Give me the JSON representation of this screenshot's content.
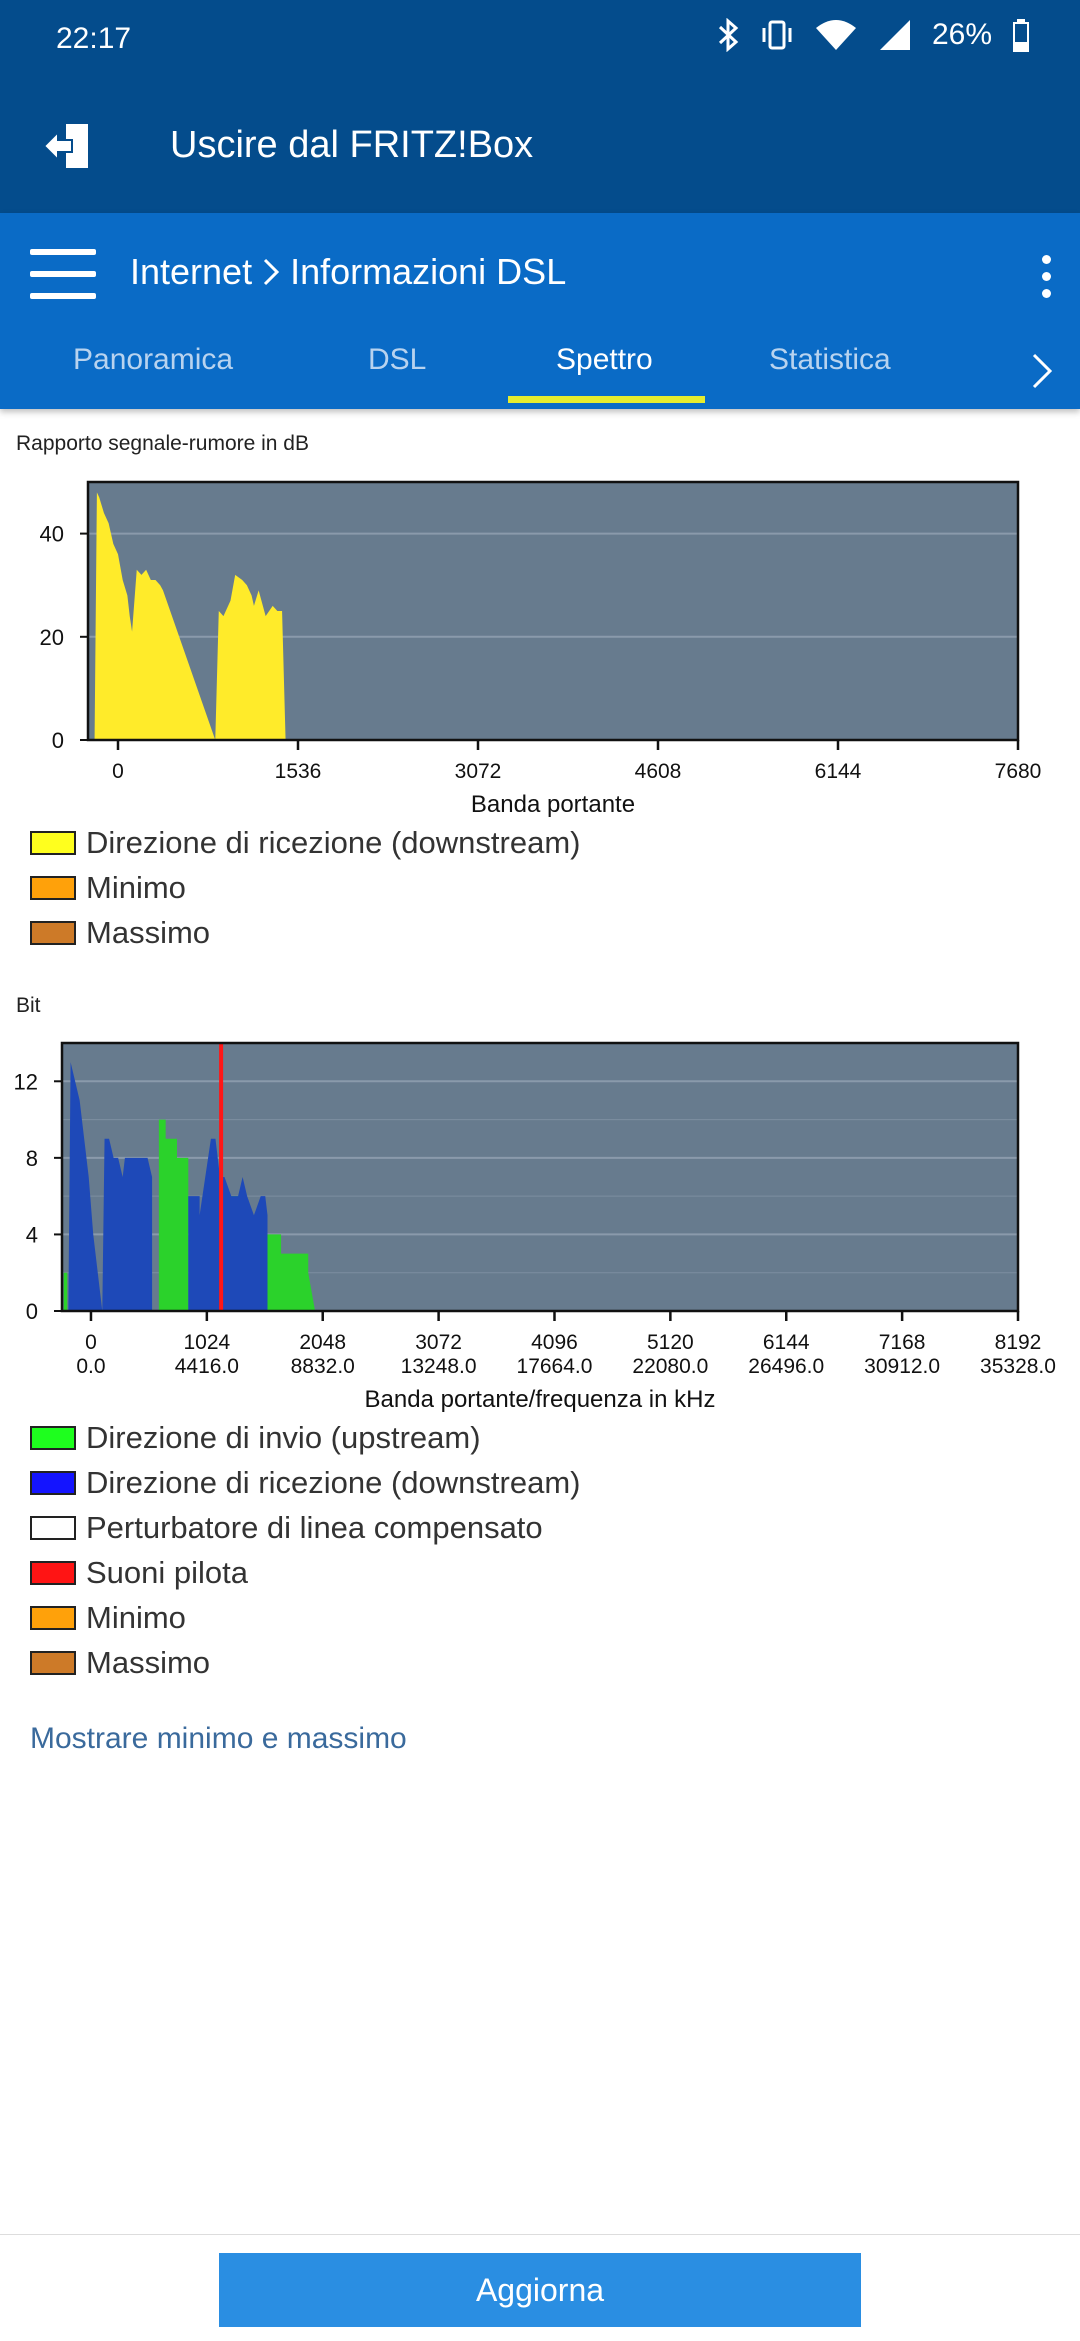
{
  "status": {
    "time": "22:17",
    "battery": "26%"
  },
  "header": {
    "title": "Uscire dal FRITZ!Box"
  },
  "breadcrumb": {
    "part1": "Internet",
    "part2": "Informazioni DSL"
  },
  "tabs": [
    "Panoramica",
    "DSL",
    "Spettro",
    "Statistica"
  ],
  "colors": {
    "statusbar": "#044c8c",
    "nav": "#0a6bc6",
    "indicator": "#e6ec2e",
    "plot_bg": "#677b8e",
    "button": "#2a8ee2"
  },
  "chart_data": [
    {
      "type": "area",
      "title": "Rapporto segnale-rumore in dB",
      "xlabel": "Banda portante",
      "ylabel": "",
      "xlim": [
        -256,
        7680
      ],
      "ylim": [
        0,
        50
      ],
      "xticks": [
        0,
        1536,
        3072,
        4608,
        6144,
        7680
      ],
      "yticks": [
        0,
        20,
        40
      ],
      "grid": true,
      "series": [
        {
          "name": "Direzione di ricezione (downstream)",
          "color": "#ffeb2a",
          "x": [
            -200,
            -180,
            -160,
            -120,
            -80,
            -40,
            0,
            40,
            80,
            100,
            120,
            160,
            200,
            240,
            280,
            320,
            360,
            384,
            830,
            860,
            900,
            960,
            1000,
            1060,
            1100,
            1140,
            1160,
            1200,
            1260,
            1320,
            1360,
            1400,
            1430
          ],
          "y": [
            0,
            48,
            47,
            44,
            42,
            38,
            36,
            31,
            28,
            24,
            21,
            33,
            32,
            33,
            31,
            31,
            30,
            29,
            0,
            25,
            24,
            27,
            32,
            31,
            30,
            28,
            26,
            29,
            24,
            26,
            25,
            25,
            0
          ]
        },
        {
          "name": "Minimo",
          "color": "#ffa10a",
          "x": [],
          "y": []
        },
        {
          "name": "Massimo",
          "color": "#cd7a28",
          "x": [],
          "y": []
        }
      ]
    },
    {
      "type": "area",
      "title": "Bit",
      "xlabel": "Banda portante/frequenza in kHz",
      "ylabel": "",
      "xlim": [
        -256,
        8192
      ],
      "ylim": [
        0,
        14
      ],
      "xticks": [
        0,
        1024,
        2048,
        3072,
        4096,
        5120,
        6144,
        7168,
        8192
      ],
      "xticks_khz": [
        "0.0",
        "4416.0",
        "8832.0",
        "13248.0",
        "17664.0",
        "22080.0",
        "26496.0",
        "30912.0",
        "35328.0"
      ],
      "yticks": [
        0,
        4,
        8,
        12
      ],
      "grid": true,
      "series": [
        {
          "name": "Direzione di invio (upstream)",
          "color": "#2bd22b",
          "segments": [
            {
              "x": [
                -240,
                -240,
                -210,
                -210
              ],
              "y": [
                0,
                2,
                2,
                0
              ]
            },
            {
              "x": [
                600,
                600,
                660,
                660,
                760,
                760,
                860,
                860,
                600
              ],
              "y": [
                0,
                10,
                10,
                9,
                9,
                8,
                8,
                0,
                0
              ]
            },
            {
              "x": [
                1200,
                1200,
                1340,
                1340,
                1500,
                1500,
                1680,
                1680,
                1920,
                1920,
                1980
              ],
              "y": [
                0,
                6,
                6,
                5,
                5,
                4,
                4,
                3,
                3,
                2,
                0
              ]
            }
          ]
        },
        {
          "name": "Direzione di ricezione (downstream)",
          "color": "#1e49b8",
          "segments": [
            {
              "x": [
                -200,
                -180,
                -140,
                -100,
                -60,
                -20,
                20,
                60,
                100,
                120,
                160,
                200,
                240,
                280,
                300,
                340,
                380,
                420,
                460,
                500,
                540,
                540
              ],
              "y": [
                0,
                13,
                12,
                11,
                9,
                7,
                4,
                2,
                0,
                9,
                9,
                8,
                8,
                7,
                8,
                8,
                8,
                8,
                8,
                8,
                7,
                0
              ]
            },
            {
              "x": [
                860,
                860,
                960,
                960,
                1060,
                1100,
                1140,
                1180,
                1240,
                1300,
                1340,
                1380,
                1440,
                1500,
                1540,
                1560,
                1560
              ],
              "y": [
                0,
                6,
                6,
                5,
                9,
                9,
                7,
                7,
                6,
                6,
                7,
                6,
                5,
                6,
                6,
                5,
                0
              ]
            }
          ]
        },
        {
          "name": "Perturbatore di linea compensato",
          "color": "#ffffff",
          "x": [],
          "y": []
        },
        {
          "name": "Suoni pilota",
          "color": "#ff1616",
          "x": [
            1150
          ],
          "y": [
            14
          ]
        },
        {
          "name": "Minimo",
          "color": "#ffa10a",
          "x": [],
          "y": []
        },
        {
          "name": "Massimo",
          "color": "#cd7a28",
          "x": [],
          "y": []
        }
      ]
    }
  ],
  "link": {
    "label": "Mostrare minimo e massimo"
  },
  "button": {
    "label": "Aggiorna"
  }
}
